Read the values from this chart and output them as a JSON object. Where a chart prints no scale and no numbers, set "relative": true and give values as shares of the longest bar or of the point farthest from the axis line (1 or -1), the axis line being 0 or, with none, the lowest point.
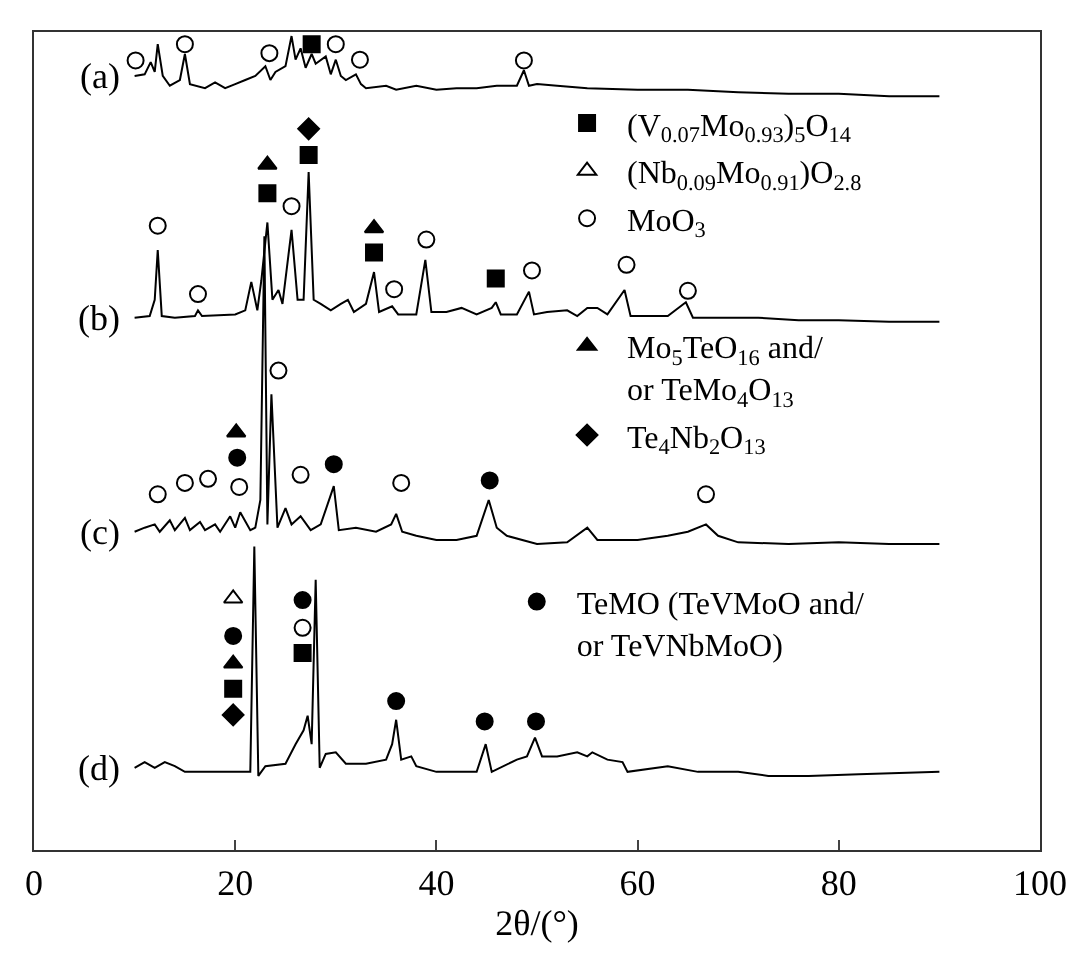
{
  "chart_data": {
    "type": "line",
    "relative": true,
    "xlabel": "2θ/(°)",
    "xlim": [
      0,
      100
    ],
    "xticks": [
      0,
      20,
      40,
      60,
      80,
      100
    ],
    "legend": "right",
    "line_style": "solid",
    "series": [
      {
        "name": "(a)",
        "color": "#000000",
        "x": [
          10,
          11,
          11.6,
          12,
          12.3,
          12.8,
          13.5,
          14.5,
          15,
          15.5,
          17,
          18,
          19,
          20,
          21,
          22,
          23,
          23.5,
          24,
          25,
          25.6,
          26,
          26.5,
          27,
          27.6,
          28,
          29,
          29.5,
          30,
          30.5,
          31,
          32,
          32.5,
          33,
          35,
          36,
          38,
          40,
          42,
          44,
          46,
          48,
          48.7,
          49.2,
          50,
          52,
          55,
          60,
          65,
          70,
          75,
          80,
          85,
          90
        ],
        "values": [
          0.951,
          0.953,
          0.968,
          0.956,
          0.99,
          0.951,
          0.939,
          0.946,
          0.978,
          0.941,
          0.936,
          0.943,
          0.936,
          0.941,
          0.946,
          0.951,
          0.963,
          0.946,
          0.956,
          0.963,
          1.0,
          0.971,
          0.985,
          0.961,
          0.978,
          0.966,
          0.975,
          0.953,
          0.971,
          0.951,
          0.946,
          0.953,
          0.941,
          0.936,
          0.939,
          0.934,
          0.939,
          0.934,
          0.936,
          0.936,
          0.939,
          0.939,
          0.958,
          0.939,
          0.941,
          0.939,
          0.936,
          0.934,
          0.934,
          0.931,
          0.929,
          0.929,
          0.926,
          0.926
        ]
      },
      {
        "name": "(b)",
        "color": "#000000",
        "x": [
          10,
          11.5,
          12,
          12.3,
          12.7,
          14,
          16,
          16.3,
          16.7,
          20,
          21,
          21.6,
          22.2,
          22.6,
          23.2,
          23.7,
          24.3,
          24.7,
          25.6,
          26.2,
          26.8,
          27.3,
          27.8,
          28.5,
          29.5,
          30.5,
          31.2,
          31.8,
          33,
          33.8,
          34.3,
          35.6,
          36.2,
          38,
          38.9,
          39.5,
          41,
          42.5,
          44,
          45.5,
          45.9,
          46.4,
          48,
          49.2,
          49.7,
          51,
          53,
          54,
          55,
          56,
          57,
          58.7,
          59.3,
          61,
          63,
          64.8,
          65.5,
          68,
          72,
          76,
          80,
          85,
          90
        ],
        "values": [
          0.654,
          0.656,
          0.676,
          0.737,
          0.656,
          0.654,
          0.656,
          0.663,
          0.656,
          0.658,
          0.663,
          0.698,
          0.663,
          0.7,
          0.771,
          0.676,
          0.688,
          0.671,
          0.762,
          0.676,
          0.676,
          0.833,
          0.676,
          0.671,
          0.663,
          0.671,
          0.676,
          0.661,
          0.671,
          0.71,
          0.661,
          0.668,
          0.658,
          0.658,
          0.725,
          0.661,
          0.661,
          0.666,
          0.658,
          0.666,
          0.673,
          0.658,
          0.658,
          0.686,
          0.658,
          0.661,
          0.663,
          0.656,
          0.666,
          0.666,
          0.658,
          0.688,
          0.656,
          0.656,
          0.656,
          0.673,
          0.654,
          0.654,
          0.654,
          0.651,
          0.651,
          0.649,
          0.649
        ]
      },
      {
        "name": "(c)",
        "color": "#000000",
        "x": [
          10,
          11,
          12,
          12.5,
          13.5,
          14,
          15,
          15.5,
          16.5,
          17,
          18,
          18.5,
          19.5,
          20,
          20.5,
          21.5,
          22,
          22.5,
          22.9,
          23.2,
          23.6,
          24.2,
          25,
          25.6,
          26.5,
          27.5,
          28.5,
          29.8,
          30.3,
          32,
          34,
          35.5,
          36,
          36.6,
          38,
          40,
          42,
          44,
          45.2,
          46,
          47,
          50,
          53,
          55,
          56,
          60,
          63,
          65,
          66.8,
          68,
          70,
          75,
          80,
          85,
          90
        ],
        "values": [
          0.391,
          0.396,
          0.4,
          0.391,
          0.405,
          0.393,
          0.408,
          0.393,
          0.403,
          0.393,
          0.4,
          0.391,
          0.41,
          0.396,
          0.415,
          0.393,
          0.396,
          0.43,
          0.754,
          0.4,
          0.56,
          0.396,
          0.42,
          0.4,
          0.41,
          0.393,
          0.4,
          0.447,
          0.393,
          0.396,
          0.391,
          0.4,
          0.413,
          0.391,
          0.386,
          0.381,
          0.381,
          0.386,
          0.43,
          0.396,
          0.386,
          0.376,
          0.378,
          0.396,
          0.381,
          0.381,
          0.386,
          0.391,
          0.4,
          0.386,
          0.378,
          0.376,
          0.378,
          0.376,
          0.376
        ]
      },
      {
        "name": "(d)",
        "color": "#000000",
        "x": [
          10,
          11,
          12,
          13,
          14,
          15,
          18,
          21.5,
          21.9,
          22.3,
          23,
          25,
          26,
          26.8,
          27.2,
          27.6,
          28,
          28.4,
          29,
          30,
          31,
          33,
          35,
          35.6,
          36,
          36.5,
          37.5,
          38,
          40,
          42,
          44,
          44.9,
          45.5,
          48,
          49,
          49.8,
          50.5,
          52,
          54,
          55,
          55.5,
          57,
          58.5,
          59,
          63,
          66,
          70,
          73,
          77,
          82,
          90
        ],
        "values": [
          0.101,
          0.108,
          0.101,
          0.108,
          0.103,
          0.096,
          0.096,
          0.096,
          0.373,
          0.091,
          0.103,
          0.106,
          0.13,
          0.147,
          0.165,
          0.13,
          0.332,
          0.101,
          0.118,
          0.12,
          0.106,
          0.106,
          0.111,
          0.13,
          0.16,
          0.111,
          0.115,
          0.103,
          0.096,
          0.096,
          0.096,
          0.13,
          0.096,
          0.111,
          0.115,
          0.138,
          0.115,
          0.115,
          0.12,
          0.115,
          0.12,
          0.111,
          0.108,
          0.096,
          0.103,
          0.096,
          0.096,
          0.091,
          0.091,
          0.093,
          0.096
        ]
      },
      {
        "type": "scatter",
        "name": "(V$_{0.07}$Mo$_{0.93}$)$_{5}$O$_{14}$",
        "marker": "square",
        "color": "#000000",
        "x": [
          27.6,
          23.2,
          27.3,
          33.8,
          45.9,
          19.8,
          26.7
        ],
        "values": [
          0.99,
          0.807,
          0.854,
          0.734,
          0.702,
          0.198,
          0.242
        ]
      },
      {
        "type": "scatter",
        "name": "(Nb$_{0.09}$Mo$_{0.91}$)O$_{2.8}$",
        "marker": "triangle",
        "color": "#ffffff",
        "x": [
          19.8
        ],
        "values": [
          0.309
        ]
      },
      {
        "type": "scatter",
        "name": "MoO$_{3}$",
        "marker": "circle",
        "color": "#ffffff",
        "x": [
          10.1,
          15.0,
          23.4,
          30.0,
          32.4,
          48.7,
          25.6,
          12.3,
          39.0,
          16.3,
          35.8,
          49.5,
          58.9,
          65.0,
          24.3,
          12.3,
          15.0,
          17.3,
          20.4,
          26.5,
          36.5,
          66.8,
          26.7
        ],
        "values": [
          0.97,
          0.99,
          0.979,
          0.99,
          0.971,
          0.97,
          0.791,
          0.767,
          0.75,
          0.683,
          0.689,
          0.712,
          0.719,
          0.687,
          0.589,
          0.437,
          0.451,
          0.456,
          0.446,
          0.461,
          0.451,
          0.437,
          0.273
        ]
      },
      {
        "type": "scatter",
        "name": "Mo$_{5}$TeO$_{16}$ and/\nor TeMo$_{4}$O$_{13}$",
        "marker": "triangle",
        "color": "#000000",
        "x": [
          23.2,
          33.8,
          20.1,
          19.8
        ],
        "values": [
          0.842,
          0.764,
          0.513,
          0.229
        ]
      },
      {
        "type": "scatter",
        "name": "Te$_{4}$Nb$_{2}$O$_{13}$",
        "marker": "diamond",
        "color": "#000000",
        "x": [
          27.3,
          19.8
        ],
        "values": [
          0.886,
          0.166
        ]
      },
      {
        "type": "scatter",
        "name": "TeMO (TeVMoO and/\nor TeVNbMoO)",
        "marker": "circle",
        "color": "#000000",
        "x": [
          20.2,
          29.8,
          45.3,
          19.8,
          26.7,
          36.0,
          44.8,
          49.9
        ],
        "values": [
          0.482,
          0.474,
          0.454,
          0.263,
          0.307,
          0.183,
          0.158,
          0.158
        ]
      }
    ]
  }
}
